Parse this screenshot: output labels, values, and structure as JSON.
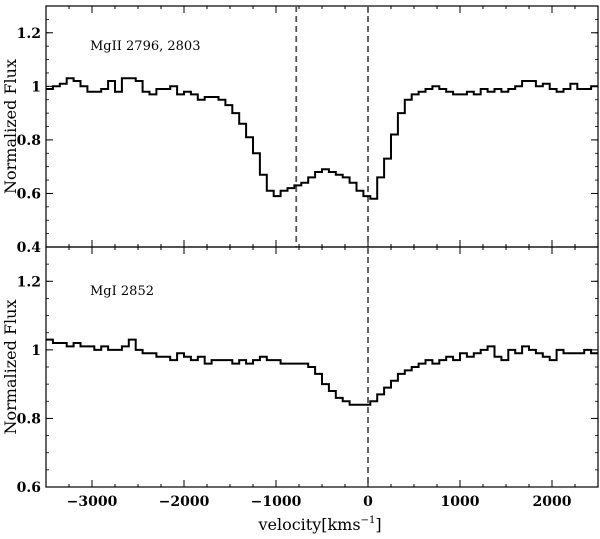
{
  "chart_data": [
    {
      "type": "line",
      "step": true,
      "label": "MgII 2796, 2803",
      "ylabel": "Normalized Flux",
      "xlim": [
        -3500,
        2500
      ],
      "ylim": [
        0.4,
        1.3
      ],
      "yticks": [
        0.4,
        0.6,
        0.8,
        1,
        1.2
      ],
      "xticks": [
        -3000,
        -2000,
        -1000,
        0,
        1000,
        2000
      ],
      "vlines": [
        -780,
        0
      ],
      "x": [
        -3500,
        -3425,
        -3350,
        -3275,
        -3200,
        -3125,
        -3050,
        -2975,
        -2900,
        -2825,
        -2750,
        -2675,
        -2600,
        -2525,
        -2450,
        -2375,
        -2300,
        -2225,
        -2150,
        -2075,
        -2000,
        -1925,
        -1850,
        -1775,
        -1700,
        -1625,
        -1550,
        -1475,
        -1400,
        -1325,
        -1250,
        -1175,
        -1100,
        -1025,
        -950,
        -875,
        -800,
        -725,
        -650,
        -575,
        -500,
        -425,
        -350,
        -275,
        -200,
        -125,
        -50,
        25,
        100,
        175,
        250,
        325,
        400,
        475,
        550,
        625,
        700,
        775,
        850,
        925,
        1000,
        1075,
        1150,
        1225,
        1300,
        1375,
        1450,
        1525,
        1600,
        1675,
        1750,
        1825,
        1900,
        1975,
        2050,
        2125,
        2200,
        2275,
        2350,
        2425
      ],
      "values": [
        0.99,
        1.0,
        1.01,
        1.03,
        1.02,
        1.0,
        0.98,
        0.98,
        0.99,
        1.02,
        0.98,
        1.03,
        1.03,
        1.02,
        0.98,
        0.97,
        0.99,
        0.99,
        1.0,
        0.97,
        0.98,
        0.97,
        0.95,
        0.96,
        0.96,
        0.95,
        0.93,
        0.9,
        0.86,
        0.81,
        0.75,
        0.67,
        0.61,
        0.59,
        0.61,
        0.62,
        0.63,
        0.64,
        0.66,
        0.68,
        0.69,
        0.68,
        0.67,
        0.66,
        0.64,
        0.61,
        0.59,
        0.58,
        0.66,
        0.73,
        0.82,
        0.9,
        0.95,
        0.97,
        0.98,
        0.99,
        1.0,
        0.99,
        0.98,
        0.97,
        0.97,
        0.98,
        0.97,
        0.99,
        0.98,
        0.99,
        0.98,
        0.99,
        1.0,
        1.02,
        1.02,
        1.0,
        1.01,
        0.99,
        0.98,
        0.99,
        1.01,
        0.99,
        0.99,
        1.0
      ]
    },
    {
      "type": "line",
      "step": true,
      "label": "MgI 2852",
      "ylabel": "Normalized Flux",
      "xlim": [
        -3500,
        2500
      ],
      "ylim": [
        0.6,
        1.3
      ],
      "yticks": [
        0.6,
        0.8,
        1,
        1.2
      ],
      "xticks": [
        -3000,
        -2000,
        -1000,
        0,
        1000,
        2000
      ],
      "vlines": [
        0
      ],
      "x": [
        -3500,
        -3425,
        -3350,
        -3275,
        -3200,
        -3125,
        -3050,
        -2975,
        -2900,
        -2825,
        -2750,
        -2675,
        -2600,
        -2525,
        -2450,
        -2375,
        -2300,
        -2225,
        -2150,
        -2075,
        -2000,
        -1925,
        -1850,
        -1775,
        -1700,
        -1625,
        -1550,
        -1475,
        -1400,
        -1325,
        -1250,
        -1175,
        -1100,
        -1025,
        -950,
        -875,
        -800,
        -725,
        -650,
        -575,
        -500,
        -425,
        -350,
        -275,
        -200,
        -125,
        -50,
        25,
        100,
        175,
        250,
        325,
        400,
        475,
        550,
        625,
        700,
        775,
        850,
        925,
        1000,
        1075,
        1150,
        1225,
        1300,
        1375,
        1450,
        1525,
        1600,
        1675,
        1750,
        1825,
        1900,
        1975,
        2050,
        2125,
        2200,
        2275,
        2350,
        2425
      ],
      "values": [
        1.03,
        1.02,
        1.02,
        1.01,
        1.02,
        1.01,
        1.01,
        1.0,
        1.01,
        1.0,
        1.0,
        1.01,
        1.03,
        1.0,
        0.99,
        0.99,
        0.98,
        0.98,
        0.97,
        0.99,
        0.98,
        0.97,
        0.98,
        0.96,
        0.97,
        0.97,
        0.97,
        0.96,
        0.97,
        0.96,
        0.97,
        0.98,
        0.97,
        0.97,
        0.96,
        0.96,
        0.96,
        0.96,
        0.95,
        0.93,
        0.9,
        0.88,
        0.86,
        0.85,
        0.84,
        0.84,
        0.84,
        0.85,
        0.87,
        0.89,
        0.91,
        0.93,
        0.94,
        0.95,
        0.96,
        0.97,
        0.96,
        0.97,
        0.98,
        0.97,
        0.99,
        0.98,
        0.99,
        1.0,
        1.01,
        0.98,
        0.97,
        1.0,
        0.99,
        1.01,
        1.0,
        0.99,
        0.98,
        0.97,
        1.0,
        0.99,
        0.99,
        0.99,
        1.0,
        0.99
      ]
    }
  ],
  "xlabel_main": "velocity[kms",
  "xlabel_sup": "−1",
  "xlabel_end": "]",
  "colors": {
    "line": "#000000",
    "vline": "#555555",
    "axis": "#000000"
  }
}
